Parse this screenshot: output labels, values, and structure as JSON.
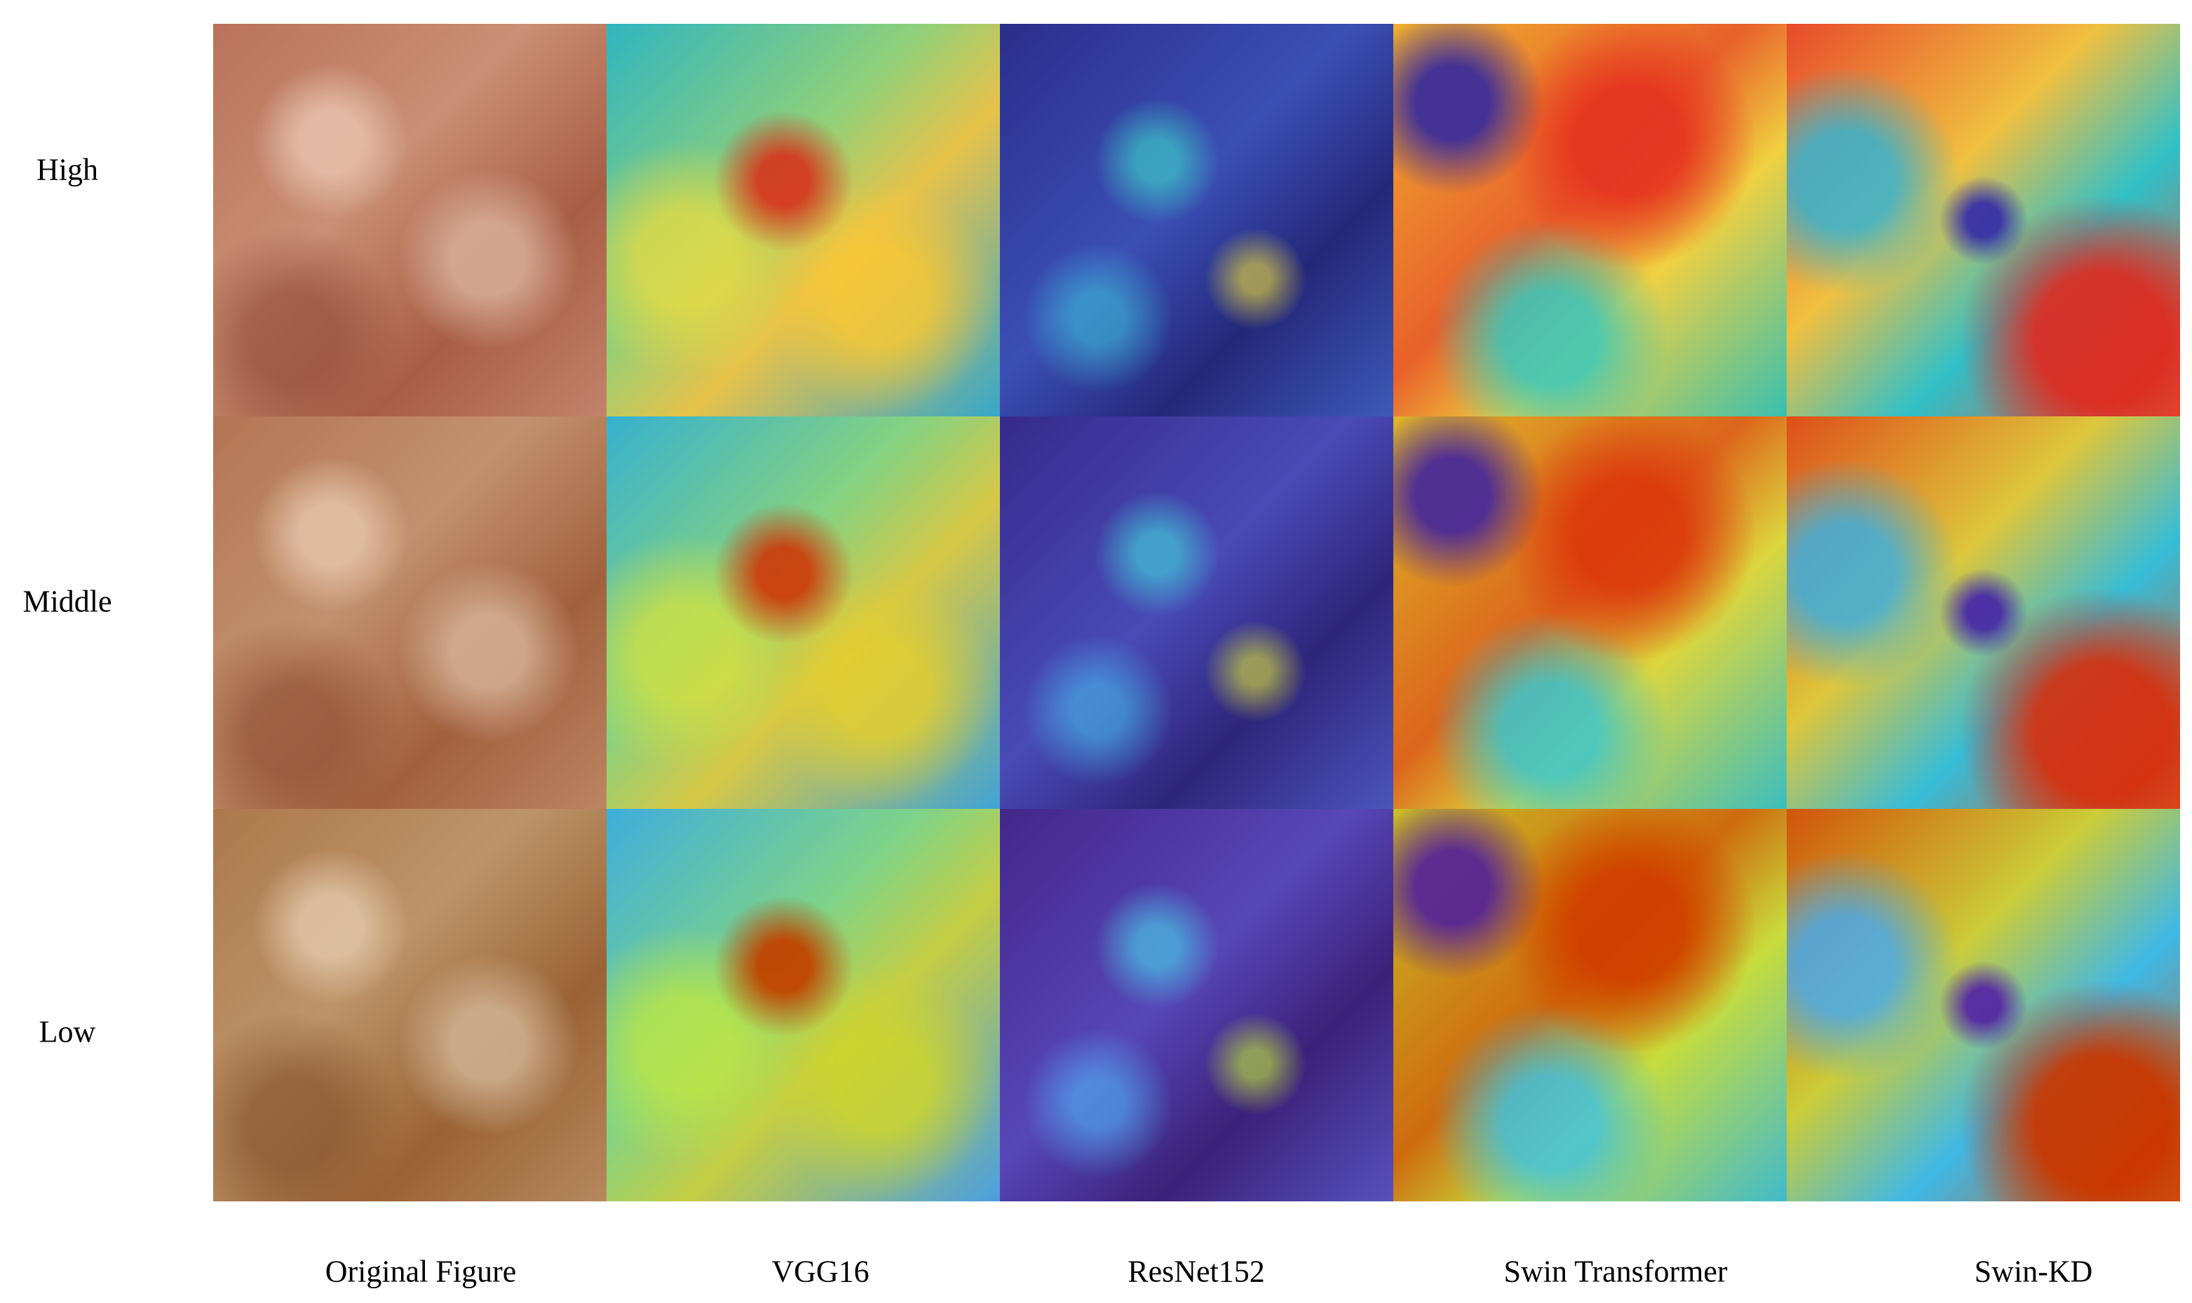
{
  "row_labels": [
    "High",
    "Middle",
    "Low"
  ],
  "column_labels": [
    "Original Figure",
    "VGG16",
    "ResNet152",
    "Swin Transformer",
    "Swin-KD"
  ]
}
